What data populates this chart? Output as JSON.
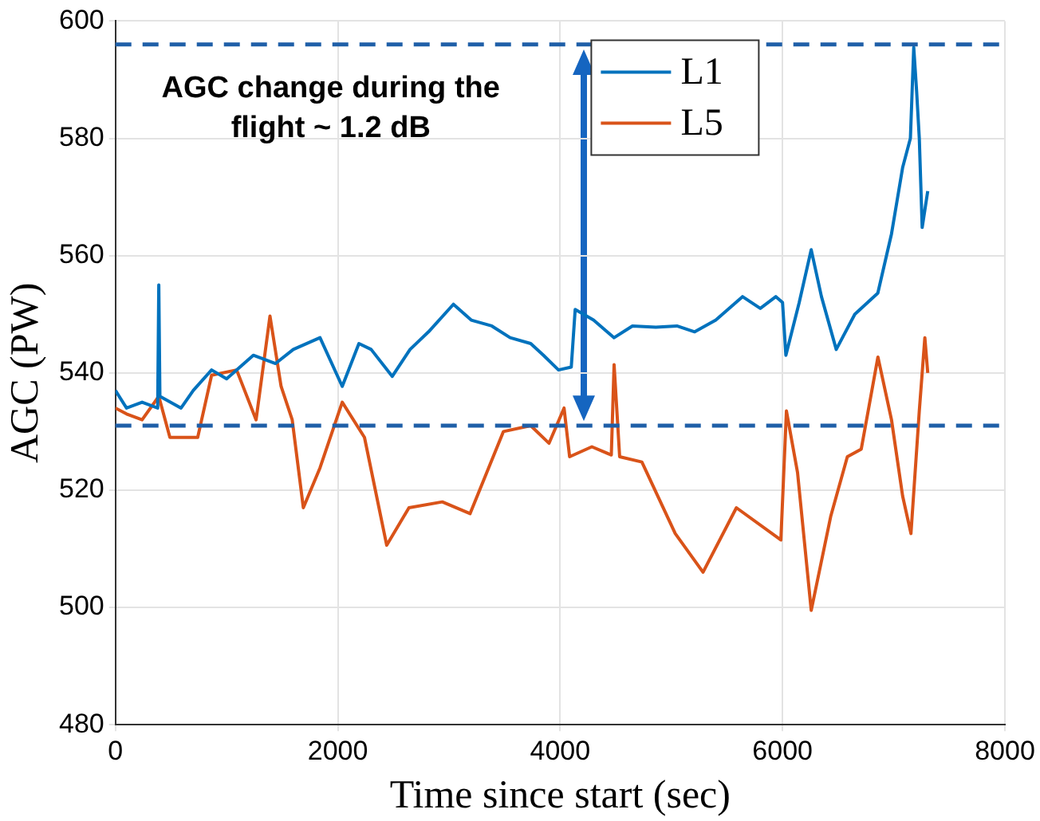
{
  "chart_data": {
    "type": "line",
    "xlabel": "Time since start (sec)",
    "ylabel": "AGC (PW)",
    "xlim": [
      0,
      8000
    ],
    "xticks": [
      0,
      2000,
      4000,
      6000,
      8000
    ],
    "ylim": [
      480,
      600
    ],
    "yticks": [
      480,
      500,
      520,
      540,
      560,
      580,
      600
    ],
    "grid": true,
    "legend": "top right",
    "line_style": "solid",
    "marker": "none",
    "series": [
      {
        "name": "L1",
        "color": "#0072bd",
        "x": [
          0,
          100,
          240,
          380,
          390,
          400,
          590,
          700,
          865,
          1000,
          1240,
          1440,
          1600,
          1840,
          2040,
          2190,
          2300,
          2490,
          2650,
          2816,
          3040,
          3200,
          3385,
          3550,
          3735,
          3850,
          3985,
          4100,
          4135,
          4300,
          4485,
          4650,
          4860,
          5050,
          5210,
          5400,
          5640,
          5800,
          5940,
          6000,
          6030,
          6150,
          6258,
          6350,
          6483,
          6650,
          6857,
          6980,
          7080,
          7150,
          7180,
          7206,
          7230,
          7256,
          7306
        ],
        "values": [
          537,
          534,
          535,
          534,
          555,
          536,
          534,
          537,
          540.5,
          539,
          543,
          541.6,
          544,
          546,
          537.7,
          545,
          544,
          539.4,
          544,
          547,
          551.7,
          549,
          548,
          546,
          545,
          543,
          540.5,
          541,
          550.8,
          549,
          546,
          548,
          547.8,
          548,
          547,
          549,
          553,
          551,
          553,
          552,
          543,
          552,
          561,
          553,
          544,
          550,
          553.6,
          563.7,
          575,
          580,
          595.5,
          588,
          580,
          564.8,
          571
        ]
      },
      {
        "name": "L5",
        "color": "#d95319",
        "x": [
          0,
          100,
          240,
          390,
          490,
          740,
          865,
          1090,
          1265,
          1390,
          1490,
          1590,
          1690,
          1840,
          2040,
          2240,
          2440,
          2640,
          2940,
          3190,
          3490,
          3735,
          3900,
          4035,
          4085,
          4285,
          4460,
          4485,
          4535,
          4735,
          5035,
          5285,
          5585,
          5985,
          6035,
          6135,
          6258,
          6433,
          6583,
          6708,
          6858,
          6980,
          7080,
          7155,
          7230,
          7280,
          7306
        ],
        "values": [
          534,
          533,
          532,
          536,
          529,
          529,
          539.6,
          540.5,
          532,
          549.7,
          537.7,
          532,
          517,
          523.8,
          535,
          529,
          510.6,
          517,
          518,
          516,
          530,
          531,
          528,
          534,
          525.7,
          527.4,
          526,
          541.4,
          525.7,
          524.8,
          512.6,
          506,
          517,
          511.5,
          533.5,
          523,
          499.5,
          515.5,
          525.7,
          527,
          542.7,
          532,
          519,
          512.6,
          533.5,
          546,
          540
        ]
      }
    ],
    "ref_lines": [
      {
        "axis": "y",
        "value": 596,
        "color": "#1f5fa8",
        "line_style": "dashed"
      },
      {
        "axis": "y",
        "value": 531,
        "color": "#1f5fa8",
        "line_style": "dashed"
      }
    ],
    "annotations": [
      "AGC change during the flight ~ 1.2 dB"
    ]
  }
}
